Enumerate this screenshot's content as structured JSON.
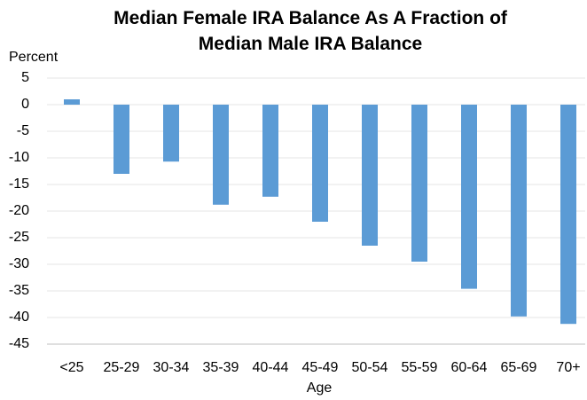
{
  "chart_data": {
    "type": "bar",
    "title": "Median Female IRA Balance As A Fraction of Median Male IRA Balance",
    "y_label": "Percent",
    "x_label": "Age",
    "categories": [
      "<25",
      "25-29",
      "30-34",
      "35-39",
      "40-44",
      "45-49",
      "50-54",
      "55-59",
      "60-64",
      "65-69",
      "70+"
    ],
    "values": [
      1,
      -13,
      -10.7,
      -18.8,
      -17.3,
      -22,
      -26.5,
      -29.5,
      -34.6,
      -39.8,
      -41.2
    ],
    "color": "#5b9bd5",
    "ylim": [
      -45,
      5
    ],
    "yticks": [
      -45,
      -40,
      -35,
      -30,
      -25,
      -20,
      -15,
      -10,
      -5,
      0,
      5
    ],
    "grid": true
  }
}
